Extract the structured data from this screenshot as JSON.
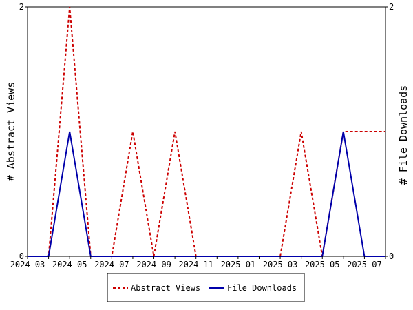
{
  "chart_data": {
    "type": "line",
    "title": "",
    "ylabel_left": "# Abstract Views",
    "ylabel_right": "# File Downloads",
    "xlabel": "",
    "x_ticks": [
      "2024-03",
      "2024-05",
      "2024-07",
      "2024-09",
      "2024-11",
      "2025-01",
      "2025-03",
      "2025-05",
      "2025-07"
    ],
    "x": [
      "2024-03",
      "2024-04",
      "2024-05",
      "2024-06",
      "2024-07",
      "2024-08",
      "2024-09",
      "2024-10",
      "2024-11",
      "2024-12",
      "2025-01",
      "2025-02",
      "2025-03",
      "2025-04",
      "2025-05",
      "2025-06",
      "2025-07",
      "2025-08"
    ],
    "ylim_left": [
      0,
      2
    ],
    "ylim_right": [
      0,
      2
    ],
    "y_ticks_left": [
      "0",
      "2"
    ],
    "y_ticks_right": [
      "0",
      "2"
    ],
    "grid": false,
    "legend_position": "bottom",
    "series": [
      {
        "name": "Abstract Views",
        "axis": "left",
        "color": "#cc0000",
        "style": "dashed",
        "values": [
          0,
          0,
          2,
          0,
          0,
          1,
          0,
          1,
          0,
          0,
          0,
          0,
          0,
          1,
          0,
          1,
          1,
          1
        ]
      },
      {
        "name": "File Downloads",
        "axis": "right",
        "color": "#0000aa",
        "style": "solid",
        "values": [
          0,
          0,
          1,
          0,
          0,
          0,
          0,
          0,
          0,
          0,
          0,
          0,
          0,
          0,
          0,
          1,
          0,
          0
        ]
      }
    ]
  }
}
